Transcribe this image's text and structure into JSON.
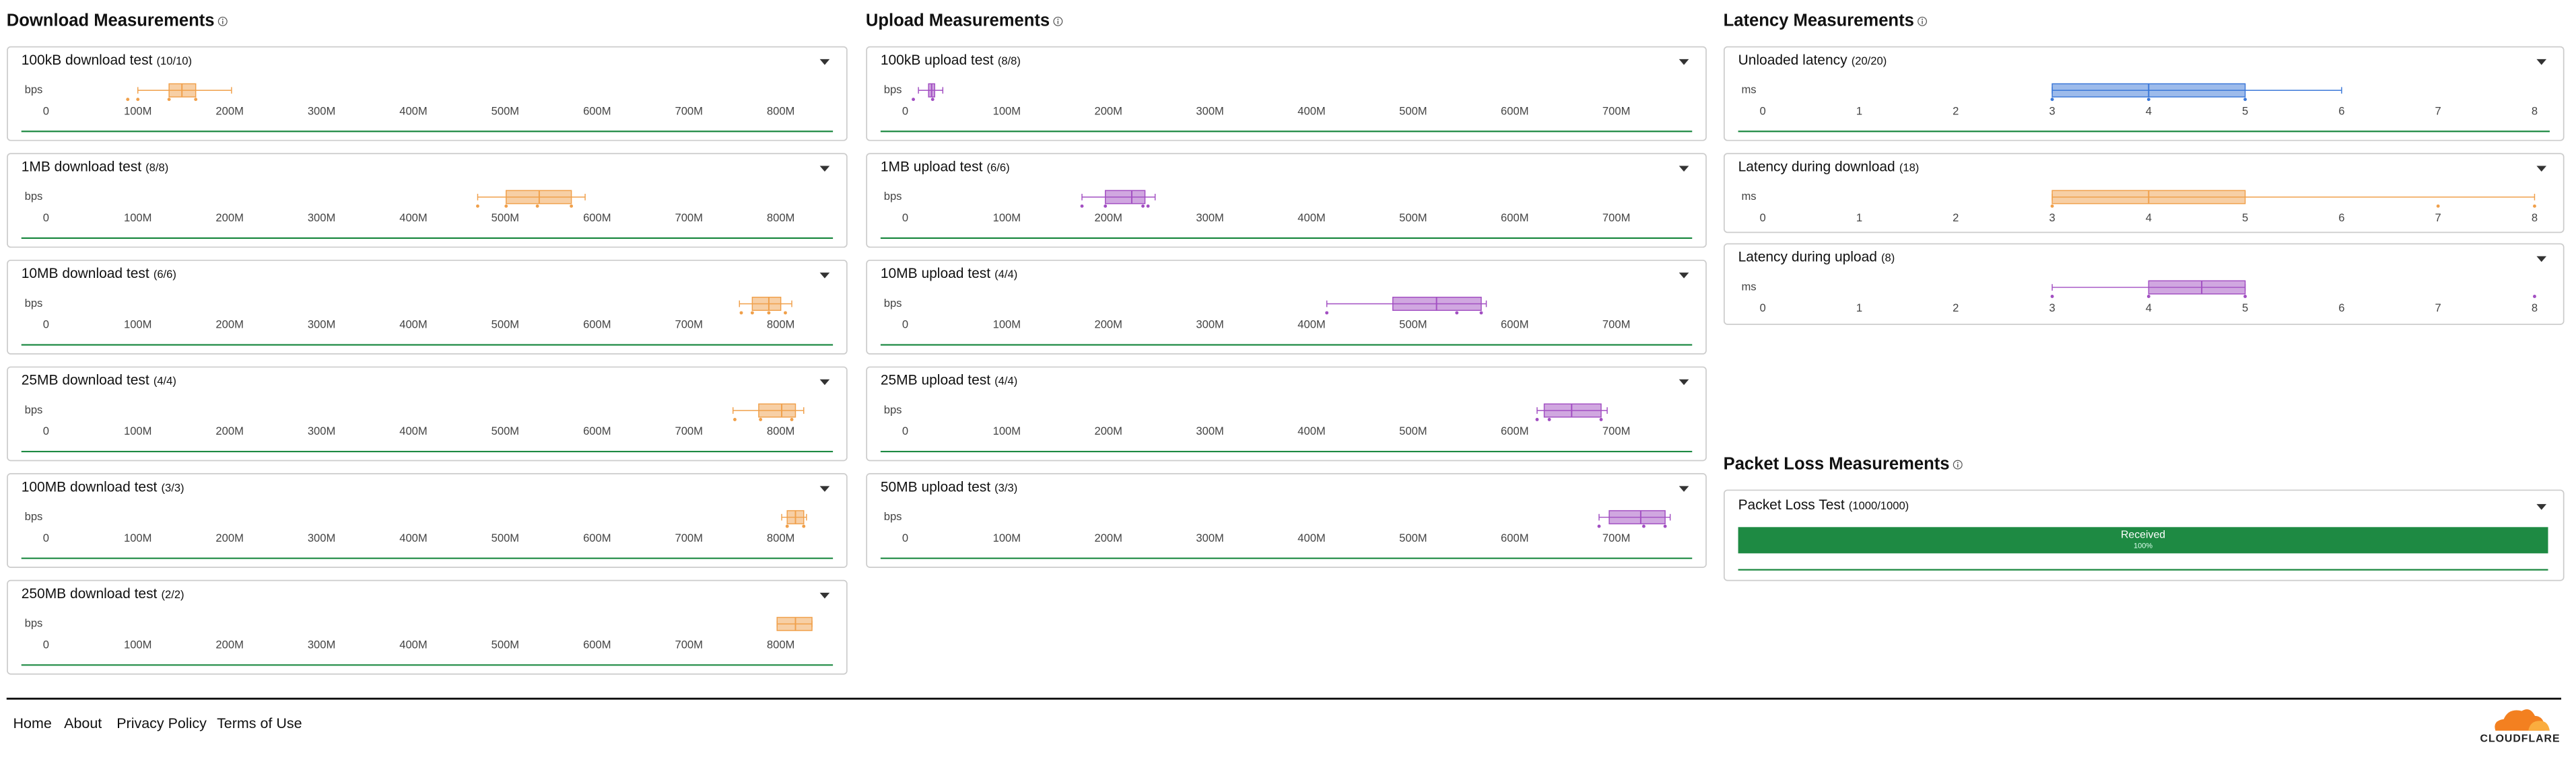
{
  "sections": [
    {
      "title": "Download Measurements",
      "panels": [
        {
          "title": "100kB download test",
          "count": "(10/10)",
          "unit": "bps",
          "chart": {
            "type": "box",
            "color": "#f0a04b",
            "xlim": [
              0,
              855000000
            ],
            "xticks": [
              0,
              {
                "value": 100000000,
                "label": "100M"
              },
              {
                "value": 200000000,
                "label": "200M"
              },
              {
                "value": 300000000,
                "label": "300M"
              },
              {
                "value": 400000000,
                "label": "400M"
              },
              {
                "value": 500000000,
                "label": "500M"
              },
              {
                "value": 600000000,
                "label": "600M"
              },
              {
                "value": 700000000,
                "label": "700M"
              },
              {
                "value": 800000000,
                "label": "800M"
              }
            ],
            "box": {
              "min": 100000000,
              "q1": 134000000,
              "median": 148000000,
              "q3": 163000000,
              "max": 202000000
            },
            "points": [
              89000000,
              100000000,
              134000000,
              163000000
            ]
          }
        },
        {
          "title": "1MB download test",
          "count": "(8/8)",
          "unit": "bps",
          "chart": {
            "type": "box",
            "color": "#f0a04b",
            "xlim": [
              0,
              855000000
            ],
            "xticks": [
              0,
              {
                "value": 100000000,
                "label": "100M"
              },
              {
                "value": 200000000,
                "label": "200M"
              },
              {
                "value": 300000000,
                "label": "300M"
              },
              {
                "value": 400000000,
                "label": "400M"
              },
              {
                "value": 500000000,
                "label": "500M"
              },
              {
                "value": 600000000,
                "label": "600M"
              },
              {
                "value": 700000000,
                "label": "700M"
              },
              {
                "value": 800000000,
                "label": "800M"
              }
            ],
            "box": {
              "min": 470000000,
              "q1": 501000000,
              "median": 537000000,
              "q3": 572000000,
              "max": 587000000
            },
            "points": [
              470000000,
              501000000,
              535000000,
              572000000
            ]
          }
        },
        {
          "title": "10MB download test",
          "count": "(6/6)",
          "unit": "bps",
          "chart": {
            "type": "box",
            "color": "#f0a04b",
            "xlim": [
              0,
              855000000
            ],
            "xticks": [
              0,
              {
                "value": 100000000,
                "label": "100M"
              },
              {
                "value": 200000000,
                "label": "200M"
              },
              {
                "value": 300000000,
                "label": "300M"
              },
              {
                "value": 400000000,
                "label": "400M"
              },
              {
                "value": 500000000,
                "label": "500M"
              },
              {
                "value": 600000000,
                "label": "600M"
              },
              {
                "value": 700000000,
                "label": "700M"
              },
              {
                "value": 800000000,
                "label": "800M"
              }
            ],
            "box": {
              "min": 755000000,
              "q1": 769000000,
              "median": 787000000,
              "q3": 800000000,
              "max": 812000000
            },
            "points": [
              757000000,
              769000000,
              787000000,
              805000000
            ]
          }
        },
        {
          "title": "25MB download test",
          "count": "(4/4)",
          "unit": "bps",
          "chart": {
            "type": "box",
            "color": "#f0a04b",
            "xlim": [
              0,
              855000000
            ],
            "xticks": [
              0,
              {
                "value": 100000000,
                "label": "100M"
              },
              {
                "value": 200000000,
                "label": "200M"
              },
              {
                "value": 300000000,
                "label": "300M"
              },
              {
                "value": 400000000,
                "label": "400M"
              },
              {
                "value": 500000000,
                "label": "500M"
              },
              {
                "value": 600000000,
                "label": "600M"
              },
              {
                "value": 700000000,
                "label": "700M"
              },
              {
                "value": 800000000,
                "label": "800M"
              }
            ],
            "box": {
              "min": 748000000,
              "q1": 776000000,
              "median": 801000000,
              "q3": 816000000,
              "max": 825000000
            },
            "points": [
              750000000,
              778000000,
              812000000
            ]
          }
        },
        {
          "title": "100MB download test",
          "count": "(3/3)",
          "unit": "bps",
          "chart": {
            "type": "box",
            "color": "#f0a04b",
            "xlim": [
              0,
              855000000
            ],
            "xticks": [
              0,
              {
                "value": 100000000,
                "label": "100M"
              },
              {
                "value": 200000000,
                "label": "200M"
              },
              {
                "value": 300000000,
                "label": "300M"
              },
              {
                "value": 400000000,
                "label": "400M"
              },
              {
                "value": 500000000,
                "label": "500M"
              },
              {
                "value": 600000000,
                "label": "600M"
              },
              {
                "value": 700000000,
                "label": "700M"
              },
              {
                "value": 800000000,
                "label": "800M"
              }
            ],
            "box": {
              "min": 801000000,
              "q1": 807000000,
              "median": 816000000,
              "q3": 825000000,
              "max": 828000000
            },
            "points": [
              807000000,
              825000000
            ]
          }
        },
        {
          "title": "250MB download test",
          "count": "(2/2)",
          "unit": "bps",
          "chart": {
            "type": "box",
            "color": "#f0a04b",
            "xlim": [
              0,
              855000000
            ],
            "xticks": [
              0,
              {
                "value": 100000000,
                "label": "100M"
              },
              {
                "value": 200000000,
                "label": "200M"
              },
              {
                "value": 300000000,
                "label": "300M"
              },
              {
                "value": 400000000,
                "label": "400M"
              },
              {
                "value": 500000000,
                "label": "500M"
              },
              {
                "value": 600000000,
                "label": "600M"
              },
              {
                "value": 700000000,
                "label": "700M"
              },
              {
                "value": 800000000,
                "label": "800M"
              }
            ],
            "box": {
              "min": 796000000,
              "q1": 796000000,
              "median": 816000000,
              "q3": 834000000,
              "max": 834000000
            }
          }
        }
      ]
    },
    {
      "title": "Upload Measurements",
      "panels": [
        {
          "title": "100kB upload test",
          "count": "(8/8)",
          "unit": "bps",
          "chart": {
            "type": "box",
            "color": "#a24fc2",
            "xlim": [
              0,
              773000000
            ],
            "xticks": [
              0,
              {
                "value": 100000000,
                "label": "100M"
              },
              {
                "value": 200000000,
                "label": "200M"
              },
              {
                "value": 300000000,
                "label": "300M"
              },
              {
                "value": 400000000,
                "label": "400M"
              },
              {
                "value": 500000000,
                "label": "500M"
              },
              {
                "value": 600000000,
                "label": "600M"
              },
              {
                "value": 700000000,
                "label": "700M"
              }
            ],
            "box": {
              "min": 13000000,
              "q1": 23000000,
              "median": 26000000,
              "q3": 29000000,
              "max": 37000000
            },
            "points": [
              8000000,
              27000000
            ]
          }
        },
        {
          "title": "1MB upload test",
          "count": "(6/6)",
          "unit": "bps",
          "chart": {
            "type": "box",
            "color": "#a24fc2",
            "xlim": [
              0,
              773000000
            ],
            "xticks": [
              0,
              {
                "value": 100000000,
                "label": "100M"
              },
              {
                "value": 200000000,
                "label": "200M"
              },
              {
                "value": 300000000,
                "label": "300M"
              },
              {
                "value": 400000000,
                "label": "400M"
              },
              {
                "value": 500000000,
                "label": "500M"
              },
              {
                "value": 600000000,
                "label": "600M"
              },
              {
                "value": 700000000,
                "label": "700M"
              }
            ],
            "box": {
              "min": 174000000,
              "q1": 197000000,
              "median": 223000000,
              "q3": 236000000,
              "max": 246000000
            },
            "points": [
              174000000,
              197000000,
              234000000,
              239000000
            ]
          }
        },
        {
          "title": "10MB upload test",
          "count": "(4/4)",
          "unit": "bps",
          "chart": {
            "type": "box",
            "color": "#a24fc2",
            "xlim": [
              0,
              773000000
            ],
            "xticks": [
              0,
              {
                "value": 100000000,
                "label": "100M"
              },
              {
                "value": 200000000,
                "label": "200M"
              },
              {
                "value": 300000000,
                "label": "300M"
              },
              {
                "value": 400000000,
                "label": "400M"
              },
              {
                "value": 500000000,
                "label": "500M"
              },
              {
                "value": 600000000,
                "label": "600M"
              },
              {
                "value": 700000000,
                "label": "700M"
              }
            ],
            "box": {
              "min": 415000000,
              "q1": 480000000,
              "median": 523000000,
              "q3": 567000000,
              "max": 572000000
            },
            "points": [
              415000000,
              543000000,
              567000000
            ]
          }
        },
        {
          "title": "25MB upload test",
          "count": "(4/4)",
          "unit": "bps",
          "chart": {
            "type": "box",
            "color": "#a24fc2",
            "xlim": [
              0,
              773000000
            ],
            "xticks": [
              0,
              {
                "value": 100000000,
                "label": "100M"
              },
              {
                "value": 200000000,
                "label": "200M"
              },
              {
                "value": 300000000,
                "label": "300M"
              },
              {
                "value": 400000000,
                "label": "400M"
              },
              {
                "value": 500000000,
                "label": "500M"
              },
              {
                "value": 600000000,
                "label": "600M"
              },
              {
                "value": 700000000,
                "label": "700M"
              }
            ],
            "box": {
              "min": 622000000,
              "q1": 629000000,
              "median": 656000000,
              "q3": 685000000,
              "max": 691000000
            },
            "points": [
              622000000,
              634000000,
              685000000
            ]
          }
        },
        {
          "title": "50MB upload test",
          "count": "(3/3)",
          "unit": "bps",
          "chart": {
            "type": "box",
            "color": "#a24fc2",
            "xlim": [
              0,
              773000000
            ],
            "xticks": [
              0,
              {
                "value": 100000000,
                "label": "100M"
              },
              {
                "value": 200000000,
                "label": "200M"
              },
              {
                "value": 300000000,
                "label": "300M"
              },
              {
                "value": 400000000,
                "label": "400M"
              },
              {
                "value": 500000000,
                "label": "500M"
              },
              {
                "value": 600000000,
                "label": "600M"
              },
              {
                "value": 700000000,
                "label": "700M"
              }
            ],
            "box": {
              "min": 683000000,
              "q1": 693000000,
              "median": 724000000,
              "q3": 748000000,
              "max": 753000000
            },
            "points": [
              683000000,
              727000000,
              748000000
            ]
          }
        }
      ]
    },
    {
      "title": "Latency Measurements",
      "panels": [
        {
          "title": "Unloaded latency",
          "count": "(20/20)",
          "unit": "ms",
          "chart": {
            "type": "box",
            "color": "#3b78d8",
            "xlim": [
              0,
              8.14
            ],
            "xticks": [
              0,
              1,
              2,
              3,
              4,
              5,
              6,
              7,
              8
            ],
            "box": {
              "min": 3,
              "q1": 3,
              "median": 4,
              "q3": 5,
              "max": 6
            },
            "points": [
              3,
              4,
              5
            ]
          }
        },
        {
          "title": "Latency during download",
          "count": "(18)",
          "unit": "ms",
          "chart": {
            "type": "box",
            "color": "#f0a04b",
            "xlim": [
              0,
              8.14
            ],
            "xticks": [
              0,
              1,
              2,
              3,
              4,
              5,
              6,
              7,
              8
            ],
            "box": {
              "min": 3,
              "q1": 3,
              "median": 4,
              "q3": 5,
              "max": 8
            },
            "points": [
              3,
              7,
              8
            ]
          }
        },
        {
          "title": "Latency during upload",
          "count": "(8)",
          "unit": "ms",
          "chart": {
            "type": "box",
            "color": "#a24fc2",
            "xlim": [
              0,
              8.14
            ],
            "xticks": [
              0,
              1,
              2,
              3,
              4,
              5,
              6,
              7,
              8
            ],
            "box": {
              "min": 3,
              "q1": 4,
              "median": 4.55,
              "q3": 5,
              "max": 5
            },
            "points": [
              3,
              4,
              5,
              8
            ]
          }
        }
      ]
    }
  ],
  "packet_loss": {
    "title": "Packet Loss Measurements",
    "panel": {
      "title": "Packet Loss Test",
      "count": "(1000/1000)",
      "bar": {
        "label": "Received",
        "value": 100,
        "value_label": "100%",
        "xlim": [
          0,
          100
        ],
        "color": "#1e8a43"
      }
    }
  },
  "footer": {
    "links": [
      "Home",
      "About",
      "Privacy Policy",
      "Terms of Use"
    ],
    "logo": "CLOUDFLARE"
  }
}
